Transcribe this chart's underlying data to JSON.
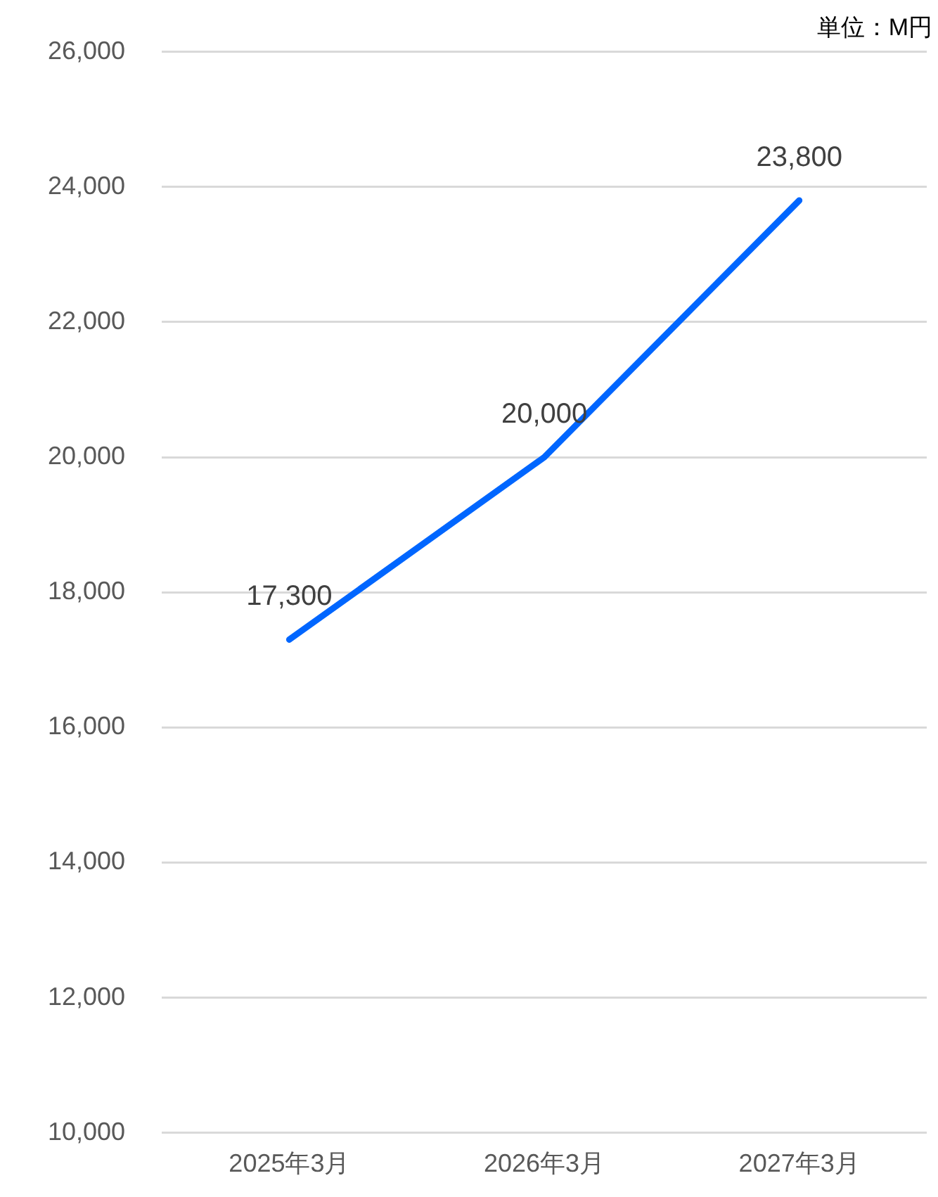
{
  "chart_data": {
    "type": "line",
    "categories": [
      "2025年3月",
      "2026年3月",
      "2027年3月"
    ],
    "series": [
      {
        "color": "#0066ff",
        "values": [
          17300,
          20000,
          23800
        ],
        "value_labels": [
          "17,300",
          "20,000",
          "23,800"
        ]
      }
    ],
    "ylim": [
      10000,
      26000
    ],
    "yticks": [
      {
        "value": 10000,
        "label": "10,000"
      },
      {
        "value": 12000,
        "label": "12,000"
      },
      {
        "value": 14000,
        "label": "14,000"
      },
      {
        "value": 16000,
        "label": "16,000"
      },
      {
        "value": 18000,
        "label": "18,000"
      },
      {
        "value": 20000,
        "label": "20,000"
      },
      {
        "value": 22000,
        "label": "22,000"
      },
      {
        "value": 24000,
        "label": "24,000"
      },
      {
        "value": 26000,
        "label": "26,000"
      }
    ],
    "grid": "y",
    "legend": false,
    "marker": "none",
    "line_style": "solid",
    "annotations": [
      "単位：M円"
    ]
  }
}
